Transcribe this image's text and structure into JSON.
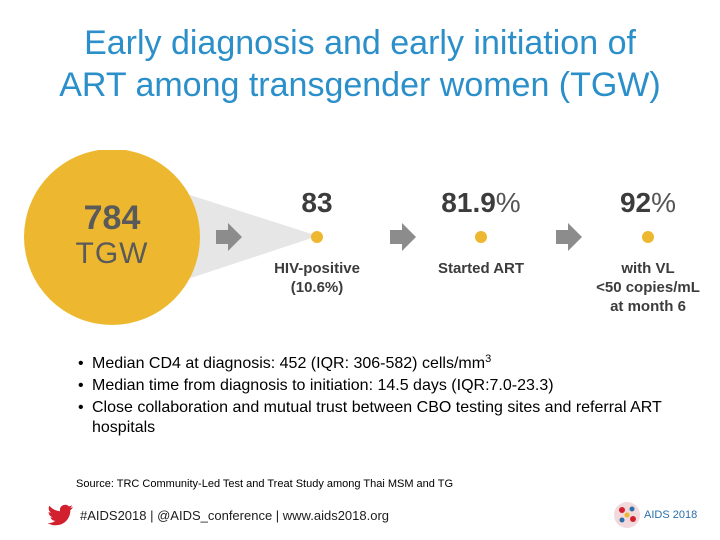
{
  "title": {
    "line1": "Early diagnosis and early initiation of",
    "line2": "ART among transgender women (TGW)"
  },
  "cascade": {
    "total_count": "784",
    "total_label": "TGW",
    "steps": [
      {
        "value": "83",
        "percent_sign": "",
        "label_line1": "HIV-positive",
        "label_line2": "(10.6%)",
        "label_line3": ""
      },
      {
        "value": "81.9",
        "percent_sign": "%",
        "label_line1": "Started ART",
        "label_line2": "",
        "label_line3": ""
      },
      {
        "value": "92",
        "percent_sign": "%",
        "label_line1": "with VL",
        "label_line2": "<50 copies/mL",
        "label_line3": "at month 6"
      }
    ]
  },
  "bullets": [
    {
      "text": "Median CD4 at diagnosis: 452 (IQR: 306-582) cells/mm",
      "superscript": "3"
    },
    {
      "text": "Median time from diagnosis to initiation: 14.5 days (IQR:7.0-23.3)"
    },
    {
      "text": "Close collaboration and mutual trust between CBO testing sites and referral ART hospitals"
    }
  ],
  "source": "Source: TRC Community-Led Test and Treat Study among Thai MSM and TG",
  "footer": {
    "text": "#AIDS2018 | @AIDS_conference | www.aids2018.org",
    "logo_text": "AIDS 2018"
  },
  "colors": {
    "title": "#2b8fc9",
    "circle": "#edb82f",
    "arrow": "#8c8c8c",
    "cone": "#e6e6e6",
    "twitter": "#d3202f"
  }
}
